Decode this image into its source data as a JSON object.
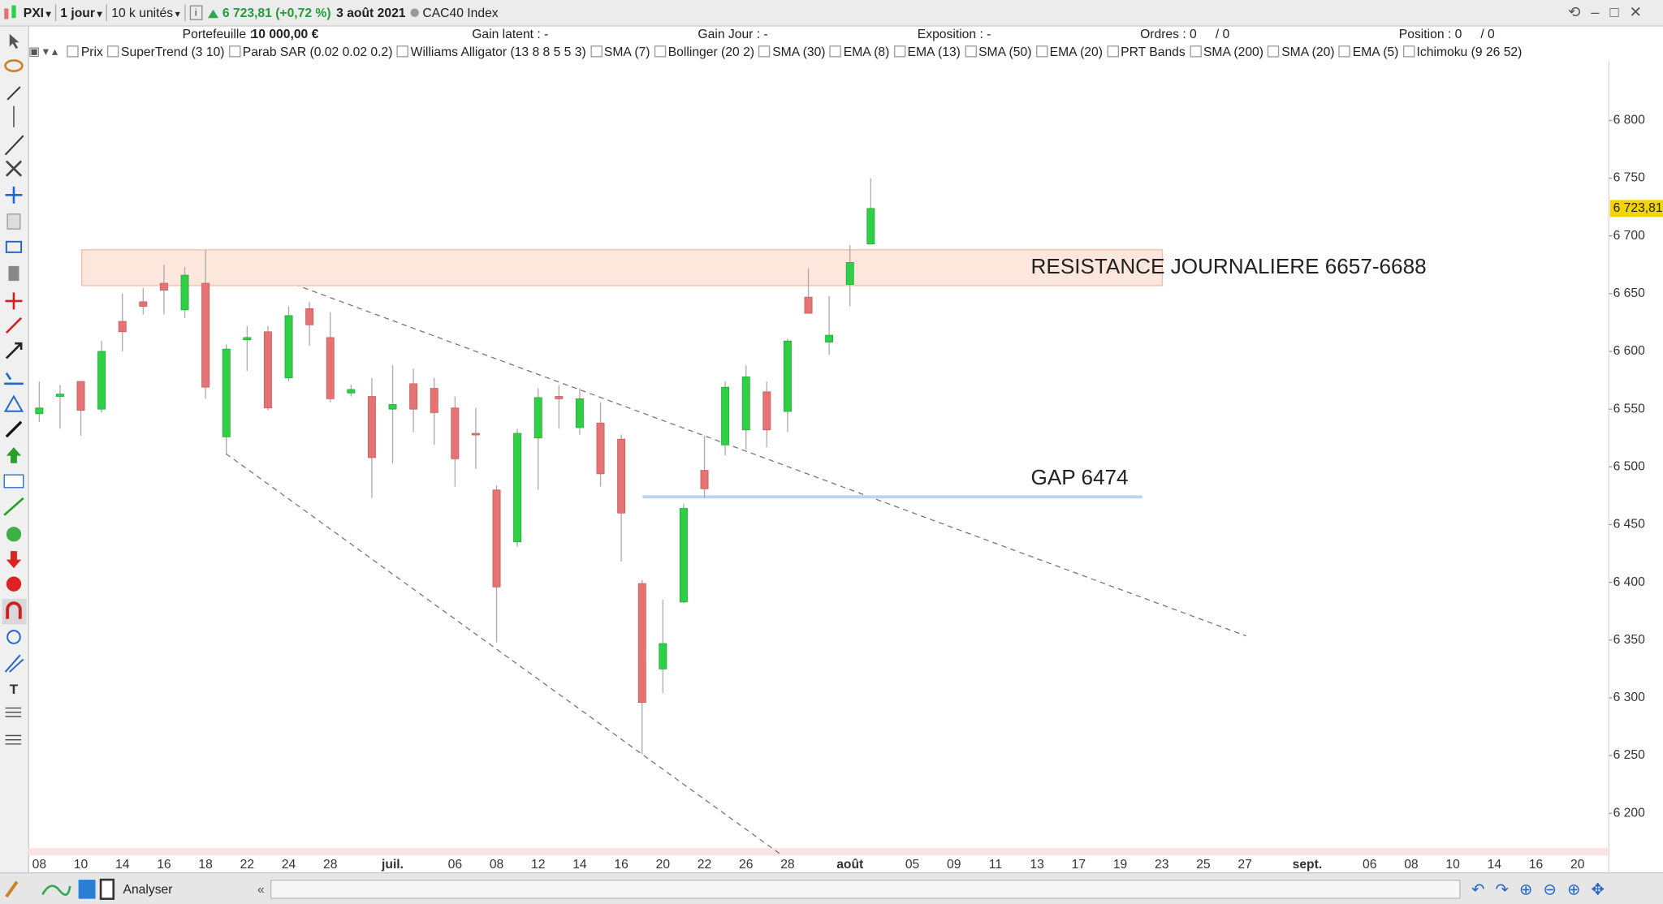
{
  "toolbar": {
    "symbol": "PXI",
    "period": "1 jour",
    "units": "10 k unités",
    "price": "6 723,81 (+0,72 %)",
    "date": "3 août 2021",
    "instrument": "CAC40 Index"
  },
  "info_bar": {
    "portfolio_label": "Portefeuille :",
    "portfolio_value": "10 000,00 €",
    "unrealized": "Gain latent : -",
    "day_gain": "Gain Jour : -",
    "exposure": "Exposition : -",
    "orders": "Ordres : 0",
    "orders_2": "/ 0",
    "position": "Position : 0",
    "position_2": "/ 0"
  },
  "indicators": [
    "Prix",
    "SuperTrend (3 10)",
    "Parab SAR (0.02 0.02 0.2)",
    "Williams Alligator (13 8 8 5 5 3)",
    "SMA (7)",
    "Bollinger (20 2)",
    "SMA (30)",
    "EMA (8)",
    "EMA (13)",
    "SMA (50)",
    "EMA (20)",
    "PRT Bands",
    "SMA (200)",
    "SMA (20)",
    "EMA (5)",
    "Ichimoku (9 26 52)"
  ],
  "bottom_bar": {
    "analyse": "Analyser"
  },
  "chart_data": {
    "type": "candlestick",
    "categories": [
      "08",
      null,
      "10",
      null,
      "14",
      null,
      "16",
      null,
      "18",
      null,
      "22",
      null,
      "24",
      null,
      "28",
      null,
      null,
      "juil.",
      null,
      null,
      "06",
      null,
      "08",
      null,
      "12",
      null,
      "14",
      null,
      "16",
      null,
      "20",
      null,
      "22",
      null,
      "26",
      null,
      "28",
      null,
      null,
      "août",
      null,
      null,
      "05",
      null,
      "09",
      null,
      "11",
      null,
      "13",
      null,
      "17",
      null,
      "19",
      null,
      "23",
      null,
      "25",
      null,
      "27",
      null,
      null,
      "sept.",
      null,
      null,
      "06",
      null,
      "08",
      null,
      "10",
      null,
      "14",
      null,
      "16",
      null,
      "20"
    ],
    "open": [
      6546,
      6561,
      6574,
      6550,
      6626,
      6643,
      6659,
      6636,
      6659,
      6526,
      6610,
      6617,
      6577,
      6637,
      6612,
      6564,
      6561,
      6550,
      6572,
      6568,
      6551,
      6529,
      6480,
      6435,
      6525,
      6561,
      6534,
      6538,
      6524,
      6399,
      6325,
      6383,
      6497,
      6519,
      6532,
      6565,
      6548,
      6647,
      6608,
      6658,
      6693,
      null,
      null,
      null,
      null,
      null,
      null,
      null,
      null,
      null,
      null,
      null,
      null,
      null,
      null,
      null,
      null,
      null,
      null,
      null,
      null,
      null,
      null,
      null,
      null,
      null,
      null,
      null,
      null,
      null,
      null,
      null,
      null,
      null,
      null
    ],
    "high": [
      6574,
      6571,
      6574,
      6609,
      6650,
      6655,
      6675,
      6673,
      6688,
      6606,
      6622,
      6622,
      6639,
      6643,
      6634,
      6571,
      6577,
      6588,
      6585,
      6577,
      6561,
      6551,
      6484,
      6533,
      6568,
      6571,
      6568,
      6556,
      6528,
      6402,
      6385,
      6468,
      6527,
      6574,
      6588,
      6574,
      6611,
      6672,
      6648,
      6692,
      6750,
      null,
      null,
      null,
      null,
      null,
      null,
      null,
      null,
      null,
      null,
      null,
      null,
      null,
      null,
      null,
      null,
      null,
      null,
      null,
      null,
      null,
      null,
      null,
      null,
      null,
      null,
      null,
      null,
      null,
      null,
      null,
      null,
      null,
      null
    ],
    "low": [
      6539,
      6533,
      6527,
      6547,
      6600,
      6632,
      6632,
      6629,
      6559,
      6510,
      6583,
      6549,
      6574,
      6605,
      6556,
      6561,
      6473,
      6503,
      6530,
      6519,
      6483,
      6498,
      6348,
      6431,
      6480,
      6533,
      6528,
      6483,
      6418,
      6251,
      6304,
      6382,
      6473,
      6510,
      6515,
      6517,
      6530,
      6633,
      6597,
      6639,
      6693,
      null,
      null,
      null,
      null,
      null,
      null,
      null,
      null,
      null,
      null,
      null,
      null,
      null,
      null,
      null,
      null,
      null,
      null,
      null,
      null,
      null,
      null,
      null,
      null,
      null,
      null,
      null,
      null,
      null,
      null,
      null,
      null,
      null,
      null
    ],
    "close": [
      6551,
      6563,
      6549,
      6600,
      6617,
      6639,
      6653,
      6666,
      6569,
      6602,
      6612,
      6551,
      6631,
      6623,
      6559,
      6567,
      6508,
      6554,
      6550,
      6547,
      6507,
      6528,
      6396,
      6529,
      6560,
      6559,
      6559,
      6494,
      6460,
      6296,
      6347,
      6464,
      6481,
      6569,
      6578,
      6532,
      6609,
      6633,
      6614,
      6677,
      6723.81,
      null,
      null,
      null,
      null,
      null,
      null,
      null,
      null,
      null,
      null,
      null,
      null,
      null,
      null,
      null,
      null,
      null,
      null,
      null,
      null,
      null,
      null,
      null,
      null,
      null,
      null,
      null,
      null,
      null,
      null,
      null,
      null,
      null,
      null
    ],
    "up_color": "#2fd046",
    "down_color": "#e57373",
    "ylim": [
      6170,
      6852
    ],
    "yticks": [
      {
        "value": 6200,
        "label": "6 200"
      },
      {
        "value": 6250,
        "label": "6 250"
      },
      {
        "value": 6300,
        "label": "6 300"
      },
      {
        "value": 6350,
        "label": "6 350"
      },
      {
        "value": 6400,
        "label": "6 400"
      },
      {
        "value": 6450,
        "label": "6 450"
      },
      {
        "value": 6500,
        "label": "6 500"
      },
      {
        "value": 6550,
        "label": "6 550"
      },
      {
        "value": 6600,
        "label": "6 600"
      },
      {
        "value": 6650,
        "label": "6 650"
      },
      {
        "value": 6700,
        "label": "6 700"
      },
      {
        "value": 6750,
        "label": "6 750"
      },
      {
        "value": 6800,
        "label": "6 800"
      }
    ],
    "last": {
      "value": 6723.81,
      "label": "6 723,81"
    },
    "resistance": {
      "label": "RESISTANCE JOURNALIERE 6657-6688",
      "low": 6657,
      "high": 6688
    },
    "gap": {
      "label": "GAP 6474",
      "value": 6474
    }
  }
}
